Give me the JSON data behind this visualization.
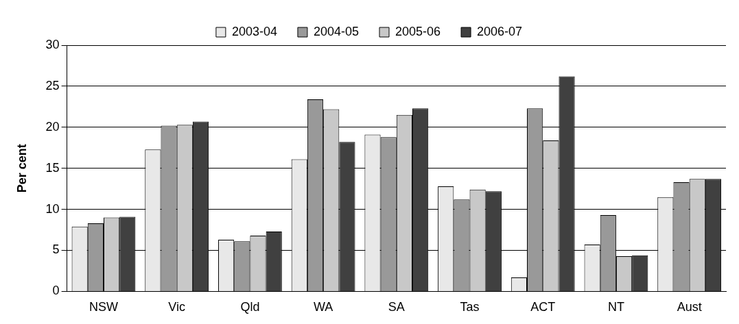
{
  "chart_data": {
    "type": "bar",
    "ylabel": "Per cent",
    "categories": [
      "NSW",
      "Vic",
      "Qld",
      "WA",
      "SA",
      "Tas",
      "ACT",
      "NT",
      "Aust"
    ],
    "series": [
      {
        "name": "2003-04",
        "color": "#e8e8e8",
        "values": [
          7.9,
          17.3,
          6.3,
          16.1,
          19.1,
          12.8,
          1.7,
          5.7,
          11.5
        ]
      },
      {
        "name": "2004-05",
        "color": "#999999",
        "values": [
          8.3,
          20.2,
          6.1,
          23.4,
          18.8,
          11.2,
          22.3,
          9.3,
          13.3
        ]
      },
      {
        "name": "2005-06",
        "color": "#c8c8c8",
        "values": [
          9.0,
          20.3,
          6.8,
          22.2,
          21.5,
          12.4,
          18.4,
          4.3,
          13.7
        ]
      },
      {
        "name": "2006-07",
        "color": "#404040",
        "values": [
          9.1,
          20.7,
          7.3,
          18.2,
          22.3,
          12.2,
          26.2,
          4.4,
          13.7
        ]
      }
    ],
    "ylim": [
      0,
      30
    ],
    "yticks": [
      0,
      5,
      10,
      15,
      20,
      25,
      30
    ],
    "grid": "y",
    "legend": "top"
  }
}
